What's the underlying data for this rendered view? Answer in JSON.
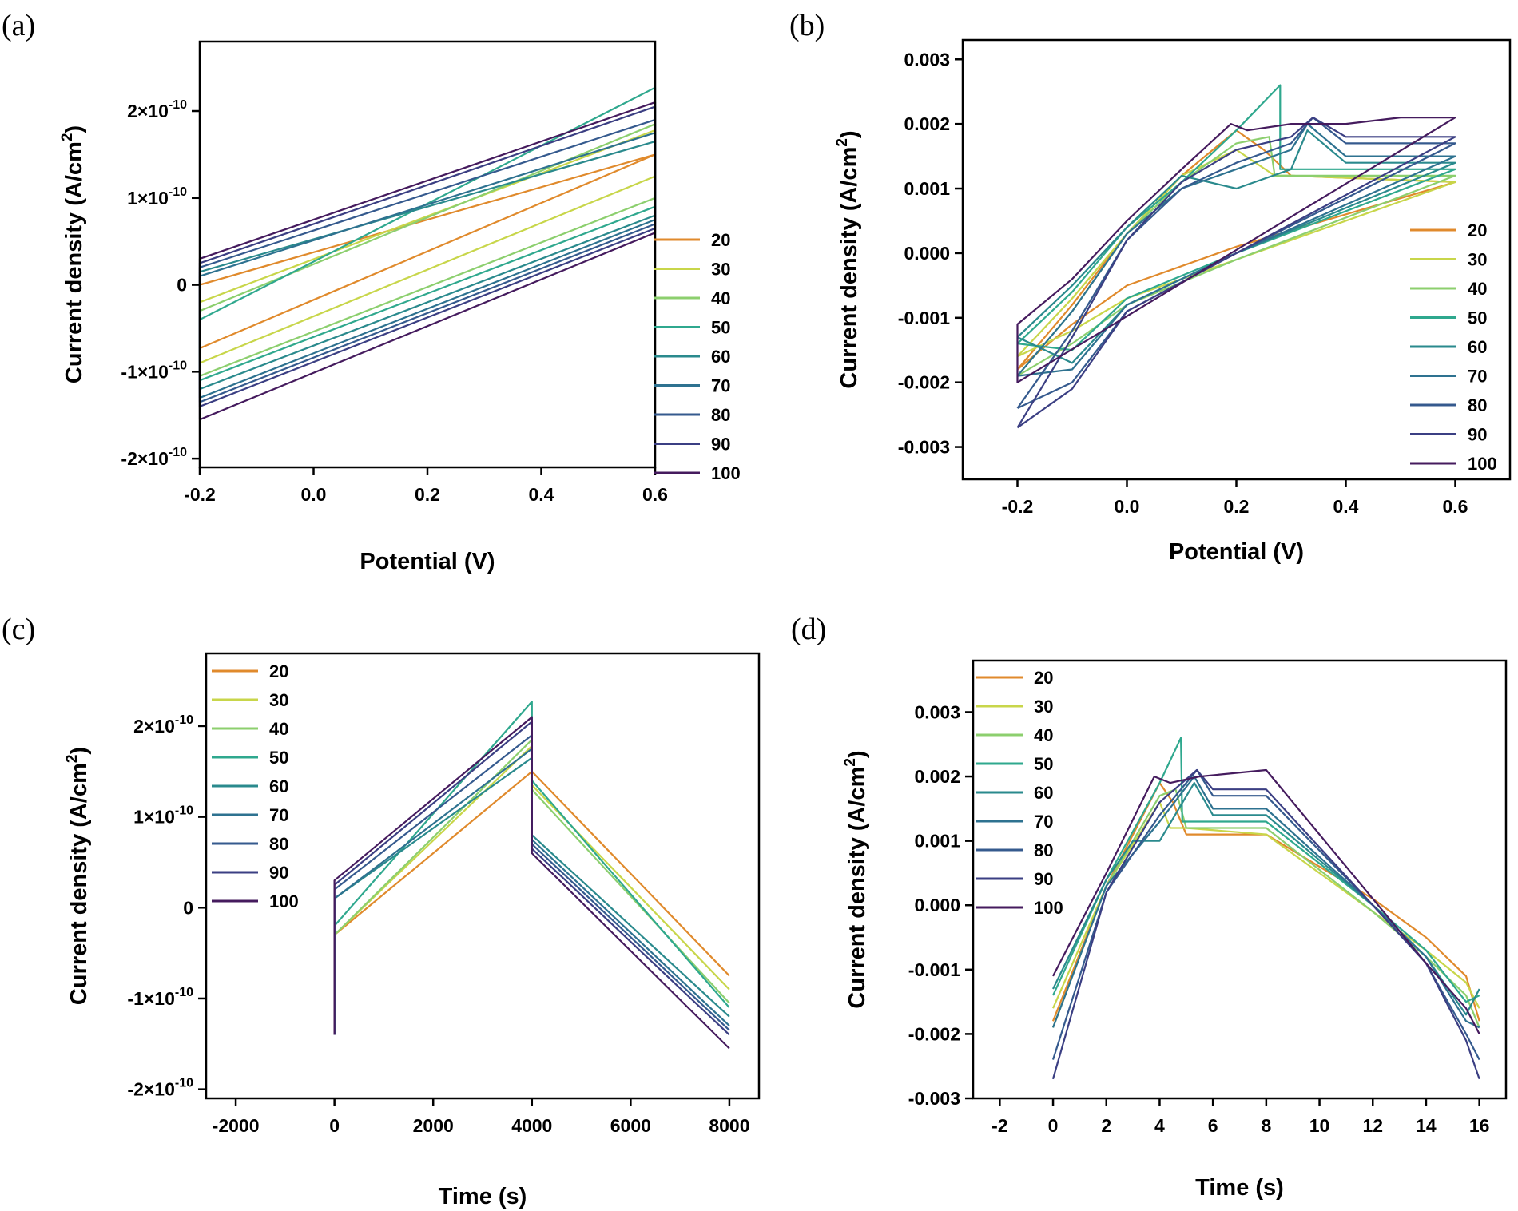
{
  "figure_labels": [
    "(a)",
    "(b)",
    "(c)",
    "(d)"
  ],
  "colors": {
    "20": "#e08a2c",
    "30": "#c8d64a",
    "40": "#8ccf6e",
    "50": "#2fa88e",
    "60": "#2a8a8d",
    "70": "#2e7290",
    "80": "#355a8e",
    "90": "#3b3f83",
    "100": "#451b5e"
  },
  "chart_data": [
    {
      "type": "line",
      "panel": "(a)",
      "xlabel": "Potential (V)",
      "ylabel": "Current density (A/cm²)",
      "xlim": [
        -0.2,
        0.6
      ],
      "ylim": [
        -2.1e-10,
        2.8e-10
      ],
      "xticks": [
        -0.2,
        0.0,
        0.2,
        0.4,
        0.6
      ],
      "xtick_labels": [
        "-0.2",
        "0.0",
        "0.2",
        "0.4",
        "0.6"
      ],
      "yticks": [
        -2e-10,
        -1e-10,
        0,
        1e-10,
        2e-10
      ],
      "ytick_labels": [
        {
          "m": "-2×10",
          "e": "-10"
        },
        {
          "m": "-1×10",
          "e": "-10"
        },
        {
          "m": "0",
          "e": ""
        },
        {
          "m": "1×10",
          "e": "-10"
        },
        {
          "m": "2×10",
          "e": "-10"
        }
      ],
      "legend": [
        "20",
        "30",
        "40",
        "50",
        "60",
        "70",
        "80",
        "90",
        "100"
      ],
      "legend_position": "center-right",
      "series": [
        {
          "name": "20",
          "x": [
            -0.2,
            0.6,
            0.6,
            -0.2,
            -0.2
          ],
          "y": [
            -7.3e-11,
            1.5e-10,
            1.5e-10,
            0,
            -7.3e-11
          ]
        },
        {
          "name": "30",
          "x": [
            -0.2,
            0.6,
            0.6,
            -0.2,
            -0.2
          ],
          "y": [
            -9e-11,
            1.25e-10,
            1.78e-10,
            -2e-11,
            -9e-11
          ]
        },
        {
          "name": "40",
          "x": [
            -0.2,
            0.6,
            0.6,
            -0.2,
            -0.2
          ],
          "y": [
            -1.05e-10,
            1e-10,
            1.85e-10,
            -3e-11,
            -1.05e-10
          ]
        },
        {
          "name": "50",
          "x": [
            -0.2,
            0.6,
            0.6,
            -0.2,
            -0.2
          ],
          "y": [
            -1.1e-10,
            9e-11,
            2.27e-10,
            -4e-11,
            -1.1e-10
          ]
        },
        {
          "name": "60",
          "x": [
            -0.2,
            0.6,
            0.6,
            -0.2,
            -0.2
          ],
          "y": [
            -1.2e-10,
            8e-11,
            1.65e-10,
            1.5e-11,
            -1.2e-10
          ]
        },
        {
          "name": "70",
          "x": [
            -0.2,
            0.6,
            0.6,
            -0.2,
            -0.2
          ],
          "y": [
            -1.3e-10,
            7.5e-11,
            1.75e-10,
            1e-11,
            -1.3e-10
          ]
        },
        {
          "name": "80",
          "x": [
            -0.2,
            0.6,
            0.6,
            -0.2,
            -0.2
          ],
          "y": [
            -1.35e-10,
            7e-11,
            1.9e-10,
            2e-11,
            -1.35e-10
          ]
        },
        {
          "name": "90",
          "x": [
            -0.2,
            0.6,
            0.6,
            -0.2,
            -0.2
          ],
          "y": [
            -1.4e-10,
            6.5e-11,
            2.05e-10,
            2.5e-11,
            -1.4e-10
          ]
        },
        {
          "name": "100",
          "x": [
            -0.2,
            0.6,
            0.6,
            -0.2,
            -0.2
          ],
          "y": [
            -1.55e-10,
            6e-11,
            2.1e-10,
            3e-11,
            -1.55e-10
          ]
        }
      ]
    },
    {
      "type": "line",
      "panel": "(b)",
      "xlabel": "Potential (V)",
      "ylabel": "Current density (A/cm²)",
      "xlim": [
        -0.3,
        0.7
      ],
      "ylim": [
        -0.0035,
        0.0033
      ],
      "xticks": [
        -0.2,
        0.0,
        0.2,
        0.4,
        0.6
      ],
      "xtick_labels": [
        "-0.2",
        "0.0",
        "0.2",
        "0.4",
        "0.6"
      ],
      "yticks": [
        -0.003,
        -0.002,
        -0.001,
        0,
        0.001,
        0.002,
        0.003
      ],
      "ytick_labels": [
        "-0.003",
        "-0.002",
        "-0.001",
        "0.000",
        "0.001",
        "0.002",
        "0.003"
      ],
      "legend": [
        "20",
        "30",
        "40",
        "50",
        "60",
        "70",
        "80",
        "90",
        "100"
      ],
      "legend_position": "right",
      "series": [
        {
          "name": "20",
          "x": [
            -0.2,
            -0.1,
            0.0,
            0.1,
            0.2,
            0.25,
            0.3,
            0.6,
            0.6,
            0.2,
            0.0,
            -0.1,
            -0.2
          ],
          "y": [
            -0.0018,
            -0.0008,
            0.0003,
            0.0012,
            0.0019,
            0.0016,
            0.0012,
            0.0011,
            0.0011,
            0.0001,
            -0.0005,
            -0.0011,
            -0.0018
          ]
        },
        {
          "name": "30",
          "x": [
            -0.2,
            -0.1,
            0.0,
            0.1,
            0.2,
            0.27,
            0.3,
            0.6,
            0.6,
            0.2,
            0.0,
            -0.1,
            -0.2
          ],
          "y": [
            -0.0016,
            -0.0007,
            0.0003,
            0.0012,
            0.0016,
            0.0012,
            0.0012,
            0.0011,
            0.0011,
            -0.0001,
            -0.0007,
            -0.0012,
            -0.0016
          ]
        },
        {
          "name": "40",
          "x": [
            -0.2,
            -0.1,
            0.0,
            0.1,
            0.2,
            0.26,
            0.27,
            0.35,
            0.6,
            0.6,
            0.2,
            0.0,
            -0.1,
            -0.2
          ],
          "y": [
            -0.0019,
            -0.0009,
            0.0003,
            0.0011,
            0.0017,
            0.0018,
            0.0012,
            0.0012,
            0.0012,
            0.0012,
            -0.0001,
            -0.0008,
            -0.0014,
            -0.0019
          ]
        },
        {
          "name": "50",
          "x": [
            -0.2,
            -0.1,
            0.0,
            0.1,
            0.2,
            0.28,
            0.28,
            0.4,
            0.6,
            0.6,
            0.2,
            0.0,
            -0.1,
            -0.2
          ],
          "y": [
            -0.0014,
            -0.0006,
            0.0004,
            0.0011,
            0.0019,
            0.0026,
            0.0013,
            0.0013,
            0.0013,
            0.0013,
            0.0,
            -0.0007,
            -0.0015,
            -0.0014
          ]
        },
        {
          "name": "60",
          "x": [
            -0.2,
            -0.1,
            0.0,
            0.1,
            0.2,
            0.3,
            0.33,
            0.4,
            0.6,
            0.6,
            0.2,
            0.0,
            -0.1,
            -0.2
          ],
          "y": [
            -0.0013,
            -0.0005,
            0.0004,
            0.0012,
            0.001,
            0.0013,
            0.0019,
            0.0014,
            0.0014,
            0.0014,
            0.0,
            -0.0008,
            -0.0017,
            -0.0013
          ]
        },
        {
          "name": "70",
          "x": [
            -0.2,
            -0.1,
            0.0,
            0.1,
            0.2,
            0.3,
            0.33,
            0.4,
            0.6,
            0.6,
            0.2,
            0.0,
            -0.1,
            -0.2
          ],
          "y": [
            -0.0019,
            -0.0009,
            0.0003,
            0.001,
            0.0013,
            0.0016,
            0.002,
            0.0015,
            0.0015,
            0.0015,
            0.0,
            -0.0008,
            -0.0018,
            -0.0019
          ]
        },
        {
          "name": "80",
          "x": [
            -0.2,
            -0.1,
            0.0,
            0.1,
            0.2,
            0.3,
            0.34,
            0.4,
            0.6,
            0.6,
            0.2,
            0.0,
            -0.1,
            -0.2
          ],
          "y": [
            -0.0024,
            -0.0012,
            0.0002,
            0.001,
            0.0014,
            0.0017,
            0.0021,
            0.0017,
            0.0017,
            0.0017,
            0.0,
            -0.0009,
            -0.002,
            -0.0024
          ]
        },
        {
          "name": "90",
          "x": [
            -0.2,
            -0.1,
            0.0,
            0.1,
            0.2,
            0.3,
            0.34,
            0.4,
            0.6,
            0.6,
            0.2,
            0.0,
            -0.1,
            -0.2
          ],
          "y": [
            -0.0027,
            -0.0013,
            0.0002,
            0.0011,
            0.0016,
            0.0018,
            0.0021,
            0.0018,
            0.0018,
            0.0018,
            0.0,
            -0.0009,
            -0.0021,
            -0.0027
          ]
        },
        {
          "name": "100",
          "x": [
            -0.2,
            -0.1,
            0.0,
            0.1,
            0.19,
            0.22,
            0.3,
            0.4,
            0.5,
            0.6,
            0.6,
            -0.2,
            -0.2
          ],
          "y": [
            -0.0011,
            -0.0004,
            0.0005,
            0.0013,
            0.002,
            0.0019,
            0.002,
            0.002,
            0.0021,
            0.0021,
            0.0021,
            -0.002,
            -0.0011
          ]
        }
      ]
    },
    {
      "type": "line",
      "panel": "(c)",
      "xlabel": "Time (s)",
      "ylabel": "Current density (A/cm²)",
      "xlim": [
        -2600,
        8600
      ],
      "ylim": [
        -2.1e-10,
        2.8e-10
      ],
      "xticks": [
        -2000,
        0,
        2000,
        4000,
        6000,
        8000
      ],
      "xtick_labels": [
        "-2000",
        "0",
        "2000",
        "4000",
        "6000",
        "8000"
      ],
      "yticks": [
        -2e-10,
        -1e-10,
        0,
        1e-10,
        2e-10
      ],
      "ytick_labels": [
        {
          "m": "-2×10",
          "e": "-10"
        },
        {
          "m": "-1×10",
          "e": "-10"
        },
        {
          "m": "0",
          "e": ""
        },
        {
          "m": "1×10",
          "e": "-10"
        },
        {
          "m": "2×10",
          "e": "-10"
        }
      ],
      "legend": [
        "20",
        "30",
        "40",
        "50",
        "60",
        "70",
        "80",
        "90",
        "100"
      ],
      "legend_position": "top-left",
      "series": [
        {
          "name": "20",
          "x": [
            0,
            0,
            4000,
            4000,
            8000
          ],
          "y": [
            -1.4e-10,
            -3e-11,
            1.5e-10,
            1.5e-10,
            -7.5e-11
          ]
        },
        {
          "name": "30",
          "x": [
            0,
            0,
            4000,
            4000,
            8000
          ],
          "y": [
            -1.4e-10,
            -3e-11,
            1.78e-10,
            1.35e-10,
            -9e-11
          ]
        },
        {
          "name": "40",
          "x": [
            0,
            0,
            4000,
            4000,
            8000
          ],
          "y": [
            -1.4e-10,
            -3e-11,
            1.85e-10,
            1.3e-10,
            -1.05e-10
          ]
        },
        {
          "name": "50",
          "x": [
            0,
            0,
            4000,
            4000,
            8000
          ],
          "y": [
            -1.4e-10,
            -2e-11,
            2.27e-10,
            1.4e-10,
            -1.1e-10
          ]
        },
        {
          "name": "60",
          "x": [
            0,
            0,
            4000,
            4000,
            8000
          ],
          "y": [
            -1.4e-10,
            1e-11,
            1.65e-10,
            8e-11,
            -1.2e-10
          ]
        },
        {
          "name": "70",
          "x": [
            0,
            0,
            4000,
            4000,
            8000
          ],
          "y": [
            -1.4e-10,
            1e-11,
            1.75e-10,
            7.5e-11,
            -1.3e-10
          ]
        },
        {
          "name": "80",
          "x": [
            0,
            0,
            4000,
            4000,
            8000
          ],
          "y": [
            -1.4e-10,
            2e-11,
            1.9e-10,
            7e-11,
            -1.35e-10
          ]
        },
        {
          "name": "90",
          "x": [
            0,
            0,
            4000,
            4000,
            8000
          ],
          "y": [
            -1.4e-10,
            2.5e-11,
            2.05e-10,
            6.5e-11,
            -1.4e-10
          ]
        },
        {
          "name": "100",
          "x": [
            0,
            0,
            4000,
            4000,
            8000
          ],
          "y": [
            -1.4e-10,
            3e-11,
            2.1e-10,
            6e-11,
            -1.55e-10
          ]
        }
      ]
    },
    {
      "type": "line",
      "panel": "(d)",
      "xlabel": "Time (s)",
      "ylabel": "Current density (A/cm²)",
      "xlim": [
        -3,
        17
      ],
      "ylim": [
        -0.003,
        0.0038
      ],
      "xticks": [
        -2,
        0,
        2,
        4,
        6,
        8,
        10,
        12,
        14,
        16
      ],
      "xtick_labels": [
        "-2",
        "0",
        "2",
        "4",
        "6",
        "8",
        "10",
        "12",
        "14",
        "16"
      ],
      "yticks": [
        -0.003,
        -0.002,
        -0.001,
        0,
        0.001,
        0.002,
        0.003
      ],
      "ytick_labels": [
        "-0.003",
        "-0.002",
        "-0.001",
        "0.000",
        "0.001",
        "0.002",
        "0.003"
      ],
      "legend": [
        "20",
        "30",
        "40",
        "50",
        "60",
        "70",
        "80",
        "90",
        "100"
      ],
      "legend_position": "top-left",
      "series": [
        {
          "name": "20",
          "x": [
            0,
            2,
            4,
            4.5,
            5,
            8,
            12,
            14,
            15.5,
            16
          ],
          "y": [
            -0.0018,
            0.0003,
            0.0019,
            0.0016,
            0.0011,
            0.0011,
            0.0001,
            -0.0005,
            -0.0011,
            -0.0018
          ]
        },
        {
          "name": "30",
          "x": [
            0,
            2,
            4,
            4.4,
            5,
            8,
            12,
            14,
            15.5,
            16
          ],
          "y": [
            -0.0016,
            0.0003,
            0.0016,
            0.0012,
            0.0012,
            0.0011,
            -0.0001,
            -0.0007,
            -0.0012,
            -0.0016
          ]
        },
        {
          "name": "40",
          "x": [
            0,
            2,
            4,
            4.6,
            5,
            8,
            12,
            14,
            15.5,
            16
          ],
          "y": [
            -0.0019,
            0.0003,
            0.0017,
            0.0018,
            0.0012,
            0.0012,
            -0.0001,
            -0.0008,
            -0.0014,
            -0.0019
          ]
        },
        {
          "name": "50",
          "x": [
            0,
            2,
            4,
            4.8,
            4.85,
            8,
            12,
            14,
            15.5,
            16
          ],
          "y": [
            -0.0014,
            0.0004,
            0.0019,
            0.0026,
            0.0013,
            0.0013,
            0.0,
            -0.0007,
            -0.0015,
            -0.0014
          ]
        },
        {
          "name": "60",
          "x": [
            0,
            2,
            3,
            4,
            5.3,
            6,
            8,
            12,
            14,
            15.5,
            16
          ],
          "y": [
            -0.0013,
            0.0004,
            0.001,
            0.001,
            0.0019,
            0.0014,
            0.0014,
            0.0,
            -0.0008,
            -0.0017,
            -0.0013
          ]
        },
        {
          "name": "70",
          "x": [
            0,
            2,
            4,
            5.3,
            6,
            8,
            12,
            14,
            15.5,
            16
          ],
          "y": [
            -0.0019,
            0.0003,
            0.0013,
            0.002,
            0.0015,
            0.0015,
            0.0,
            -0.0008,
            -0.0018,
            -0.0019
          ]
        },
        {
          "name": "80",
          "x": [
            0,
            2,
            4,
            5.4,
            6,
            8,
            12,
            14,
            15.5,
            16
          ],
          "y": [
            -0.0024,
            0.0002,
            0.0014,
            0.0021,
            0.0017,
            0.0017,
            0.0,
            -0.0009,
            -0.002,
            -0.0024
          ]
        },
        {
          "name": "90",
          "x": [
            0,
            2,
            4,
            5.4,
            6,
            8,
            12,
            14,
            15.5,
            16
          ],
          "y": [
            -0.0027,
            0.0002,
            0.0016,
            0.0021,
            0.0018,
            0.0018,
            0.0,
            -0.0009,
            -0.0021,
            -0.0027
          ]
        },
        {
          "name": "100",
          "x": [
            0,
            2,
            3.8,
            4.4,
            5.5,
            8,
            12,
            14,
            15.5,
            16
          ],
          "y": [
            -0.0011,
            0.0005,
            0.002,
            0.0019,
            0.002,
            0.0021,
            0.0001,
            -0.0009,
            -0.0016,
            -0.002
          ]
        }
      ]
    }
  ]
}
